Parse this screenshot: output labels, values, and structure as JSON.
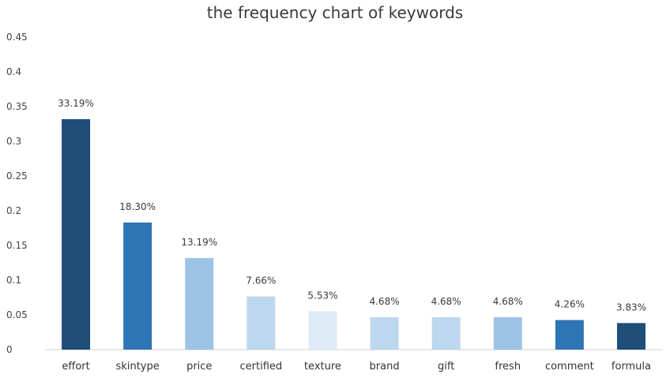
{
  "chart_data": {
    "type": "bar",
    "title": "the frequency chart of keywords",
    "xlabel": "",
    "ylabel": "",
    "categories": [
      "effort",
      "skintype",
      "price",
      "certified",
      "texture",
      "brand",
      "gift",
      "fresh",
      "comment",
      "formula"
    ],
    "values": [
      0.3319,
      0.183,
      0.1319,
      0.0766,
      0.0553,
      0.0468,
      0.0468,
      0.0468,
      0.0426,
      0.0383
    ],
    "data_labels": [
      "33.19%",
      "18.30%",
      "13.19%",
      "7.66%",
      "5.53%",
      "4.68%",
      "4.68%",
      "4.68%",
      "4.26%",
      "3.83%"
    ],
    "bar_colors": [
      "#1f4e79",
      "#2e75b6",
      "#9dc3e6",
      "#bdd7ee",
      "#deebf7",
      "#bdd7ee",
      "#bdd7ee",
      "#9dc3e6",
      "#2e75b6",
      "#1f4e79"
    ],
    "ylim": [
      0,
      0.45
    ],
    "yticks": [
      "0",
      "0.05",
      "0.1",
      "0.15",
      "0.2",
      "0.25",
      "0.3",
      "0.35",
      "0.4",
      "0.45"
    ],
    "ytick_values": [
      0,
      0.05,
      0.1,
      0.15,
      0.2,
      0.25,
      0.3,
      0.35,
      0.4,
      0.45
    ],
    "grid": false,
    "legend": "none"
  }
}
